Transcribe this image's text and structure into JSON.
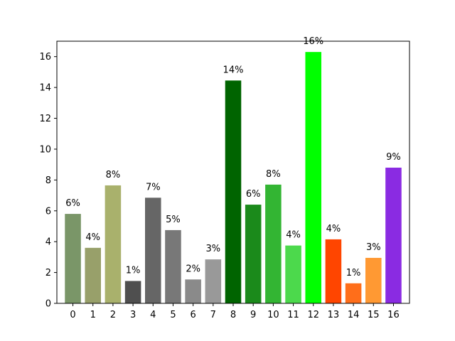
{
  "chart_data": {
    "type": "bar",
    "title": "",
    "xlabel": "",
    "ylabel": "",
    "categories": [
      "0",
      "1",
      "2",
      "3",
      "4",
      "5",
      "6",
      "7",
      "8",
      "9",
      "10",
      "11",
      "12",
      "13",
      "14",
      "15",
      "16"
    ],
    "values": [
      5.8,
      3.6,
      7.65,
      1.45,
      6.85,
      4.75,
      1.55,
      2.85,
      14.45,
      6.4,
      7.7,
      3.75,
      16.3,
      4.15,
      1.3,
      2.95,
      8.8
    ],
    "labels": [
      "6%",
      "4%",
      "8%",
      "1%",
      "7%",
      "5%",
      "2%",
      "3%",
      "14%",
      "6%",
      "8%",
      "4%",
      "16%",
      "4%",
      "1%",
      "3%",
      "9%"
    ],
    "colors": [
      "#7a9668",
      "#98a06a",
      "#a9b16c",
      "#4f4f4f",
      "#666666",
      "#787878",
      "#8a8a8a",
      "#999999",
      "#006400",
      "#1b8a1b",
      "#33b533",
      "#4cd94c",
      "#00ff00",
      "#ff4500",
      "#ff6e1a",
      "#ff9933",
      "#8a2be2"
    ],
    "ylim": [
      0,
      17
    ],
    "yticks": [
      0,
      2,
      4,
      6,
      8,
      10,
      12,
      14,
      16
    ],
    "grid": false,
    "legend": "none"
  }
}
